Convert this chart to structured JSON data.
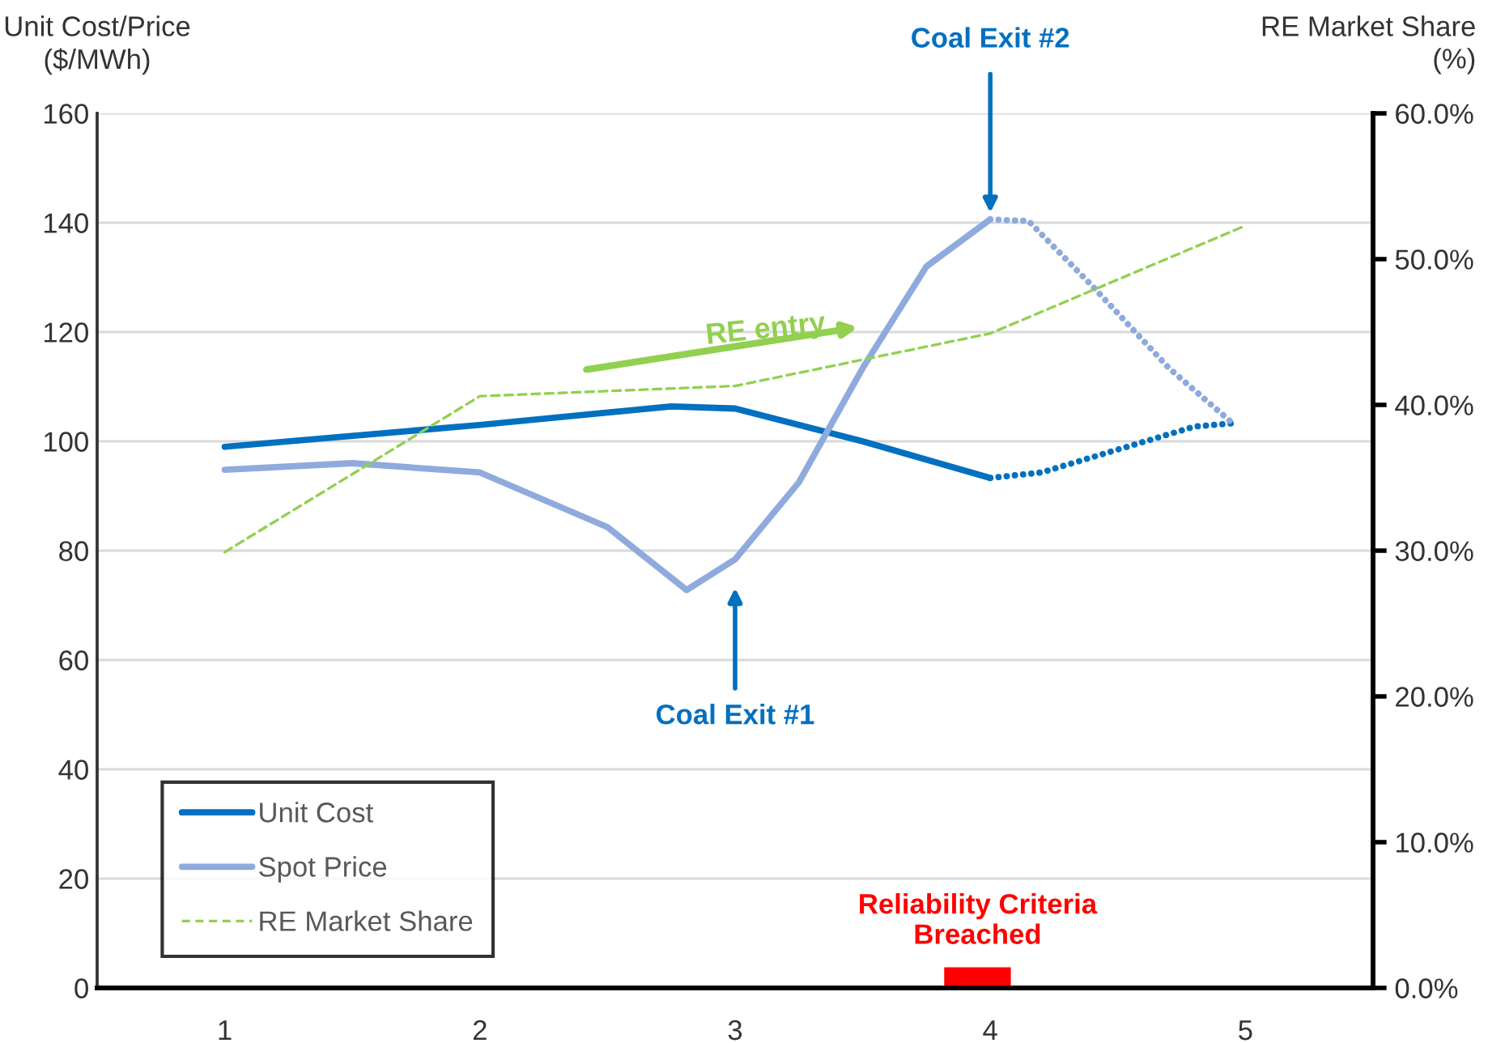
{
  "chart_data": {
    "type": "line",
    "ylabel": "Unit Cost/Price\n($/MWh)",
    "y2label": "RE Market Share\n(%)",
    "xlim": [
      0.5,
      5.5
    ],
    "xticks": [
      1,
      2,
      3,
      4,
      5
    ],
    "ylim": [
      0,
      160
    ],
    "yticks": [
      0,
      20,
      40,
      60,
      80,
      100,
      120,
      140,
      160
    ],
    "y2lim": [
      0,
      60
    ],
    "y2ticks": [
      {
        "value": 0,
        "label": "0.0%"
      },
      {
        "value": 10,
        "label": "10.0%"
      },
      {
        "value": 20,
        "label": "20.0%"
      },
      {
        "value": 30,
        "label": "30.0%"
      },
      {
        "value": 40,
        "label": "40.0%"
      },
      {
        "value": 50,
        "label": "50.0%"
      },
      {
        "value": 60,
        "label": "60.0%"
      }
    ],
    "grid": "y",
    "legend": "bottom left",
    "series": [
      {
        "name": "Unit Cost",
        "color": "#0070c0",
        "line_style": "solid",
        "x": [
          1,
          2,
          2.75,
          3,
          3.5,
          4
        ],
        "values": [
          99.0,
          103.0,
          106.4,
          106.0,
          100.0,
          93.3
        ]
      },
      {
        "name": "Spot Price",
        "color": "#8faadc",
        "line_style": "solid",
        "x": [
          1,
          1.5,
          2,
          2.5,
          2.81,
          3,
          3.25,
          3.5,
          3.75,
          4
        ],
        "values": [
          94.8,
          96.0,
          94.3,
          84.3,
          72.8,
          78.4,
          92.5,
          113.4,
          132.0,
          140.6
        ]
      },
      {
        "name": "RE Market Share",
        "color": "#92d050",
        "line_style": "dashed",
        "axis": "y2",
        "x": [
          1,
          2,
          3,
          4,
          5
        ],
        "values": [
          29.9,
          40.6,
          41.3,
          44.9,
          52.3
        ]
      },
      {
        "color": "#0070c0",
        "line_style": "dotted",
        "x": [
          4,
          4.2,
          4.5,
          4.8,
          4.95
        ],
        "values": [
          93.3,
          94.3,
          98.5,
          102.7,
          103.3
        ]
      },
      {
        "color": "#8faadc",
        "line_style": "dotted",
        "x": [
          4,
          4.15,
          4.4,
          4.7,
          4.95
        ],
        "values": [
          140.6,
          140.3,
          128.4,
          113.4,
          103.3
        ]
      },
      {
        "type": "bar",
        "color": "#ff0000",
        "x": [
          3.95
        ],
        "values": [
          4
        ]
      }
    ],
    "annotations": [
      "RE entry",
      "Coal Exit #1",
      {
        "text": "Coal Exit #2",
        "x": 4,
        "y": 141
      },
      {
        "text": "Reliability Criteria\nBreached",
        "x": 3.95,
        "y": 4
      }
    ]
  }
}
